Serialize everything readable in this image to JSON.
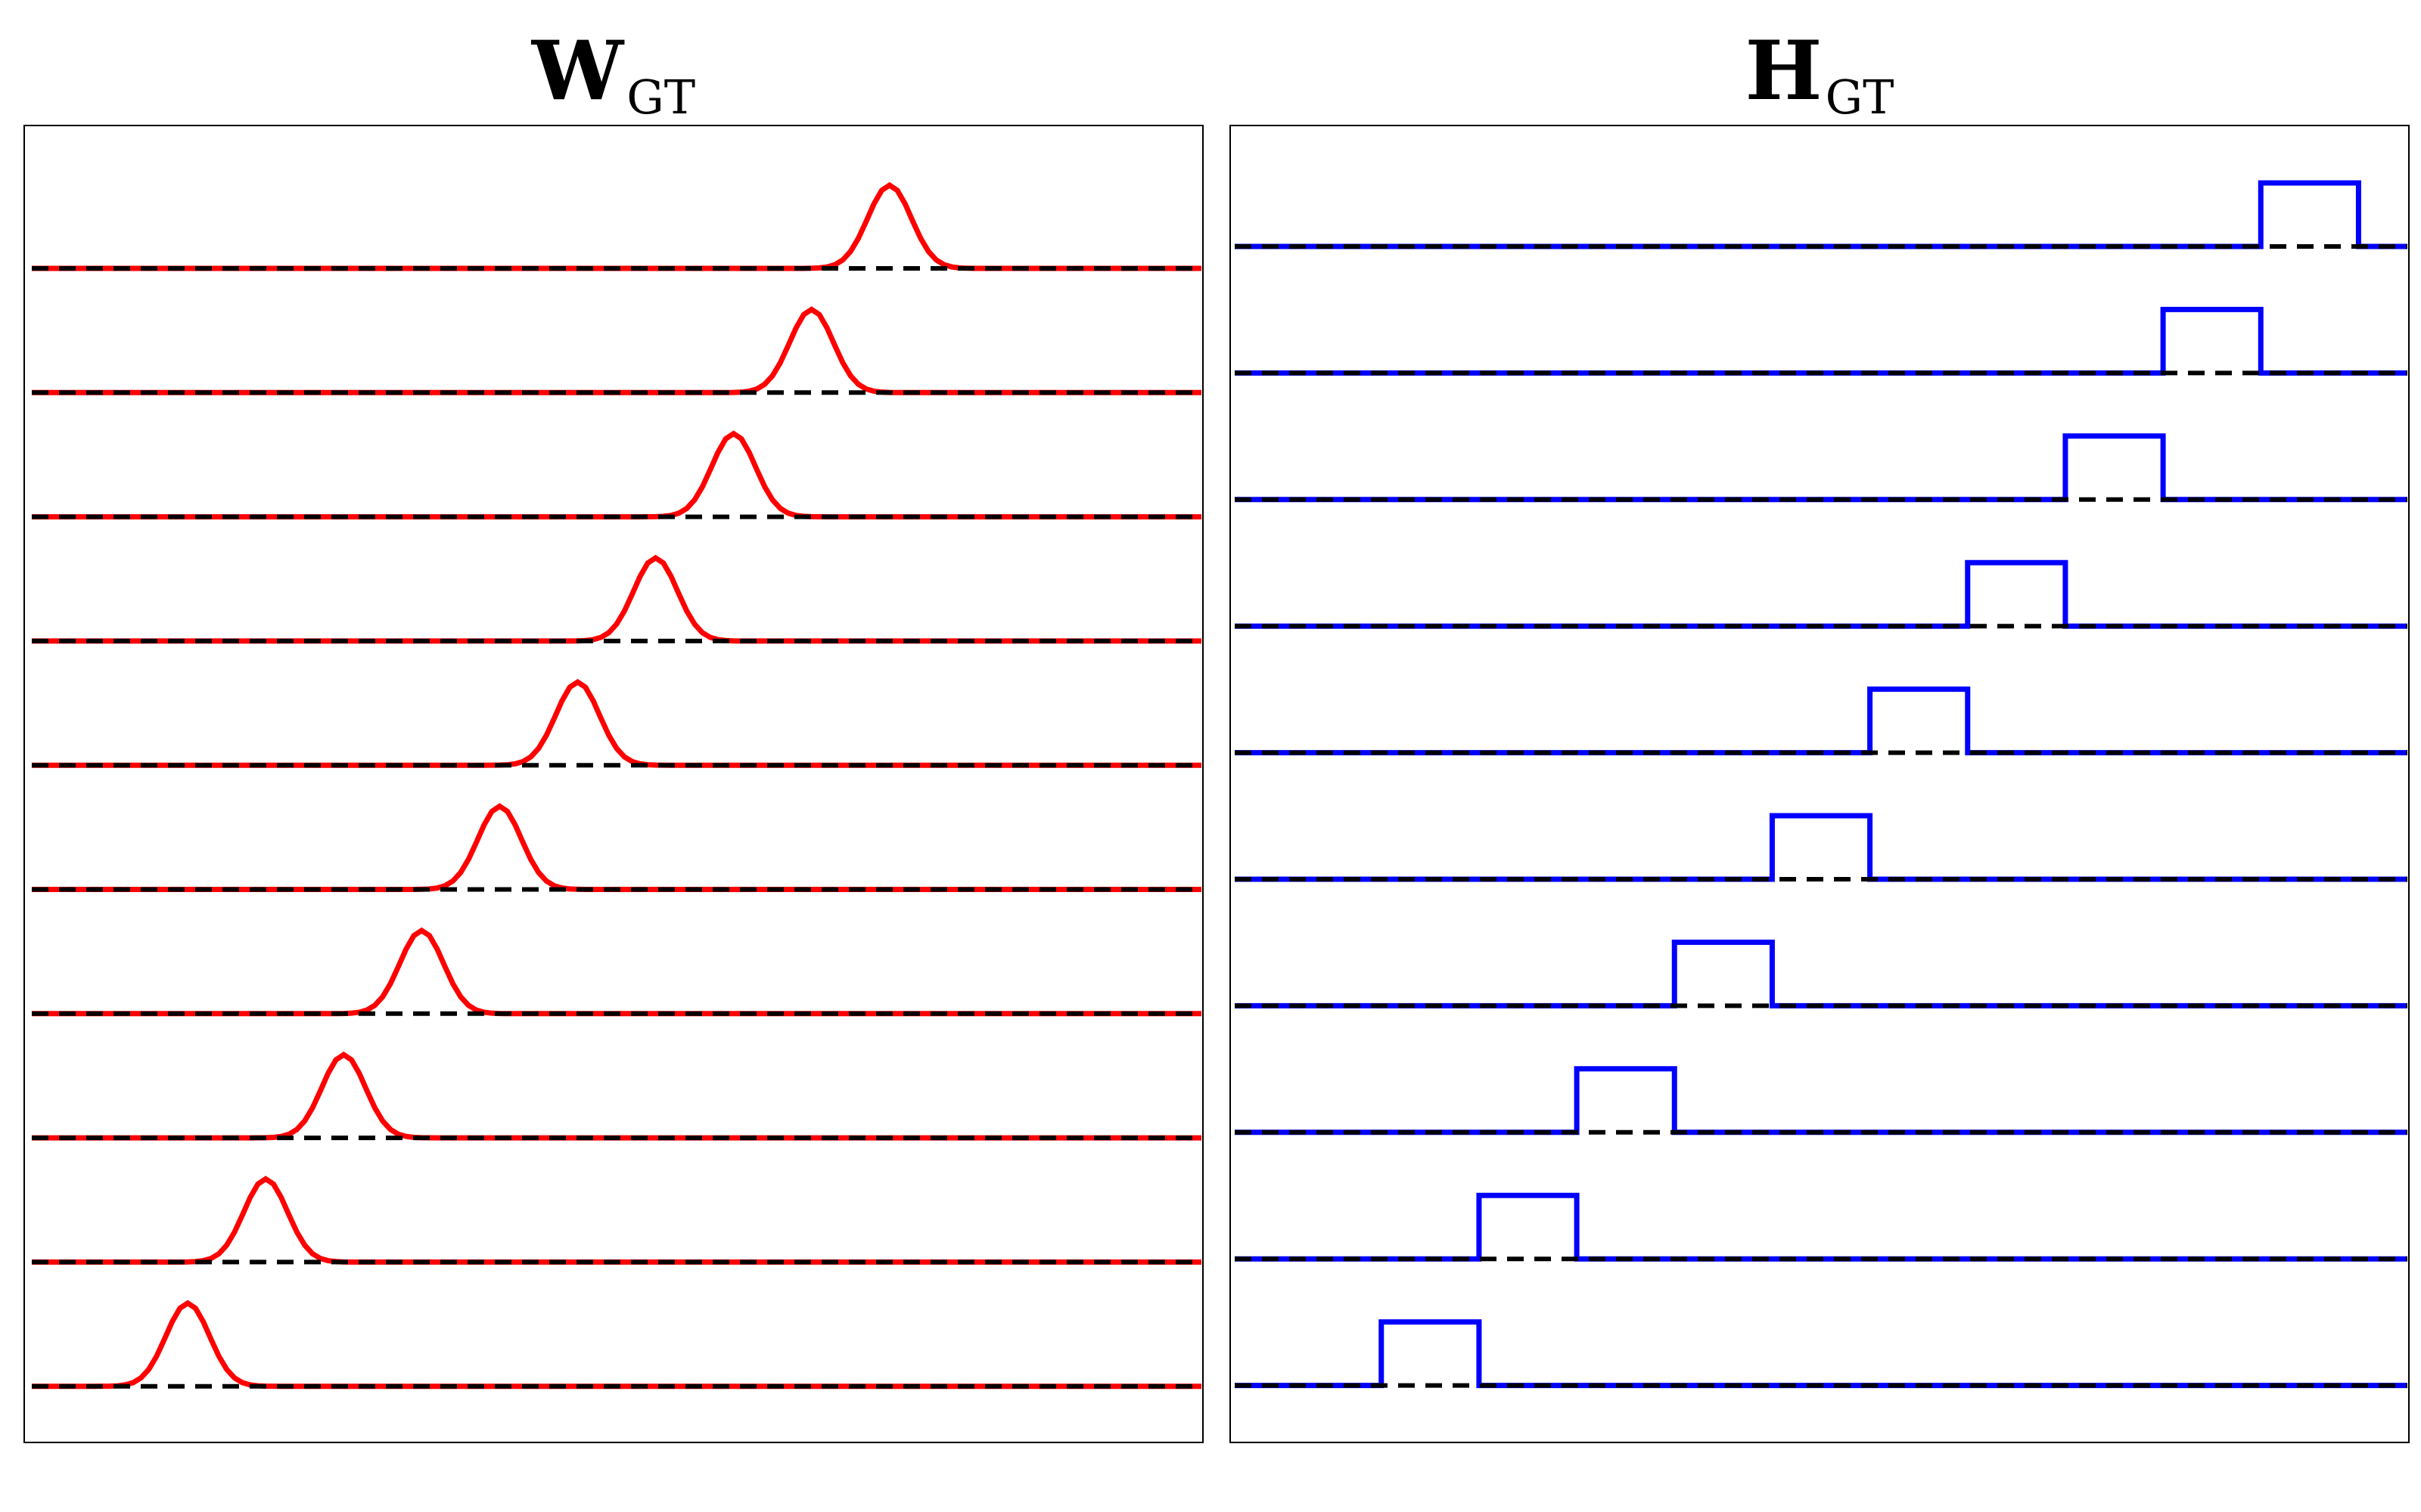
{
  "chart_data": [
    {
      "type": "line",
      "title": "W",
      "title_subscript": "GT",
      "color": "#ff0000",
      "baseline_color": "#000000",
      "shape": "gaussian",
      "grid": false,
      "legend": "none",
      "n_rows": 10,
      "x_range": [
        0,
        150
      ],
      "peak_height": 1.0,
      "peak_sigma": 2.8,
      "rows": [
        {
          "peak_center": 110
        },
        {
          "peak_center": 100
        },
        {
          "peak_center": 90
        },
        {
          "peak_center": 80
        },
        {
          "peak_center": 70
        },
        {
          "peak_center": 60
        },
        {
          "peak_center": 50
        },
        {
          "peak_center": 40
        },
        {
          "peak_center": 30
        },
        {
          "peak_center": 20
        }
      ]
    },
    {
      "type": "line",
      "title": "H",
      "title_subscript": "GT",
      "color": "#0000ff",
      "baseline_color": "#000000",
      "shape": "rectangular",
      "grid": false,
      "legend": "none",
      "n_rows": 10,
      "x_range": [
        0,
        120
      ],
      "pulse_height": 1.0,
      "rows": [
        {
          "start": 105,
          "end": 115
        },
        {
          "start": 95,
          "end": 105
        },
        {
          "start": 85,
          "end": 95
        },
        {
          "start": 75,
          "end": 85
        },
        {
          "start": 65,
          "end": 75
        },
        {
          "start": 55,
          "end": 65
        },
        {
          "start": 45,
          "end": 55
        },
        {
          "start": 35,
          "end": 45
        },
        {
          "start": 25,
          "end": 35
        },
        {
          "start": 15,
          "end": 25
        }
      ]
    }
  ]
}
